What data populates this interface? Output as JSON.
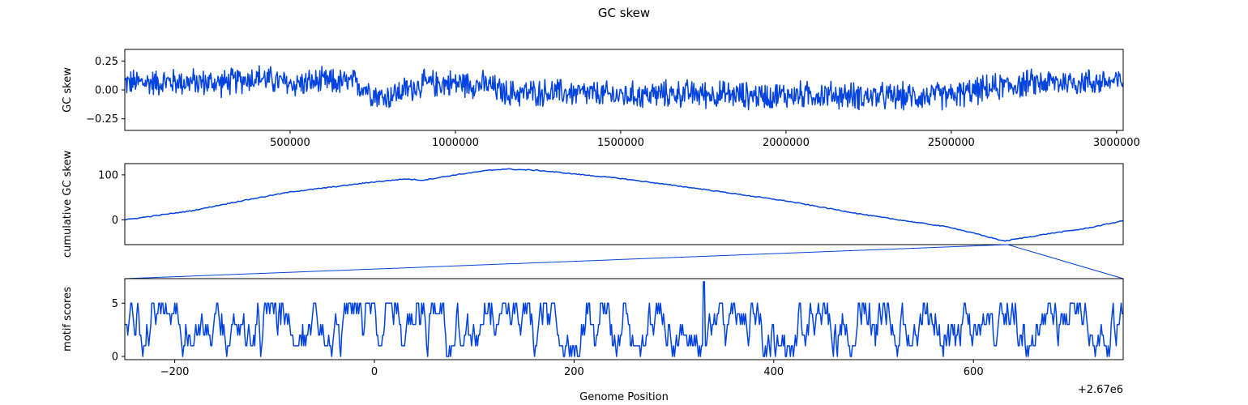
{
  "figure": {
    "title": "GC skew",
    "x_offset_label": "+2.67e6",
    "line_color": "#0343df"
  },
  "chart_data": [
    {
      "type": "line",
      "ylabel": "GC skew",
      "xlabel": "",
      "xlim": [
        0,
        3020000
      ],
      "ylim": [
        -0.35,
        0.35
      ],
      "xticks": [
        500000,
        1000000,
        1500000,
        2000000,
        2500000,
        3000000
      ],
      "xtick_labels": [
        "500000",
        "1000000",
        "1500000",
        "2000000",
        "2500000",
        "3000000"
      ],
      "yticks": [
        -0.25,
        0.0,
        0.25
      ],
      "ytick_labels": [
        "−0.25",
        "0.00",
        "0.25"
      ],
      "series": [
        {
          "x": [
            0,
            150000,
            300000,
            400000,
            500000,
            600000,
            700000,
            780000,
            900000,
            1000000,
            1100000,
            1150000,
            1300000,
            1500000,
            1700000,
            1900000,
            2100000,
            2300000,
            2500000,
            2650000,
            2750000,
            2850000,
            3020000
          ],
          "y": [
            0.06,
            0.07,
            0.06,
            0.11,
            0.05,
            0.07,
            0.06,
            -0.07,
            0.05,
            0.06,
            0.04,
            -0.03,
            -0.02,
            -0.05,
            -0.03,
            -0.05,
            -0.04,
            -0.06,
            -0.05,
            0.03,
            0.06,
            0.07,
            0.07
          ],
          "noise_amplitude": 0.14
        }
      ]
    },
    {
      "type": "line",
      "ylabel": "cumulative GC skew",
      "xlabel": "",
      "xlim": [
        0,
        3020000
      ],
      "ylim": [
        -55,
        125
      ],
      "yticks": [
        0,
        100
      ],
      "ytick_labels": [
        "0",
        "100"
      ],
      "series": [
        {
          "x": [
            0,
            200000,
            350000,
            500000,
            650000,
            750000,
            850000,
            900000,
            1000000,
            1100000,
            1150000,
            1250000,
            1500000,
            1750000,
            2000000,
            2250000,
            2500000,
            2660000,
            2800000,
            2900000,
            3020000
          ],
          "y": [
            0,
            20,
            42,
            62,
            75,
            84,
            91,
            88,
            100,
            110,
            113,
            110,
            92,
            68,
            42,
            10,
            -17,
            -47,
            -30,
            -20,
            -2
          ]
        }
      ]
    },
    {
      "type": "line",
      "ylabel": "motif scores",
      "xlabel": "Genome Position",
      "xlim": [
        -250,
        750
      ],
      "ylim": [
        -0.3,
        7.3
      ],
      "xticks": [
        -200,
        0,
        200,
        400,
        600
      ],
      "xtick_labels": [
        "−200",
        "0",
        "200",
        "400",
        "600"
      ],
      "yticks": [
        0,
        5
      ],
      "ytick_labels": [
        "0",
        "5"
      ],
      "zoom_center": 2670630,
      "series": [
        {
          "point_count": 1000,
          "value_range": [
            0,
            7
          ],
          "peak_x": 330,
          "peak_value": 7
        }
      ]
    }
  ]
}
